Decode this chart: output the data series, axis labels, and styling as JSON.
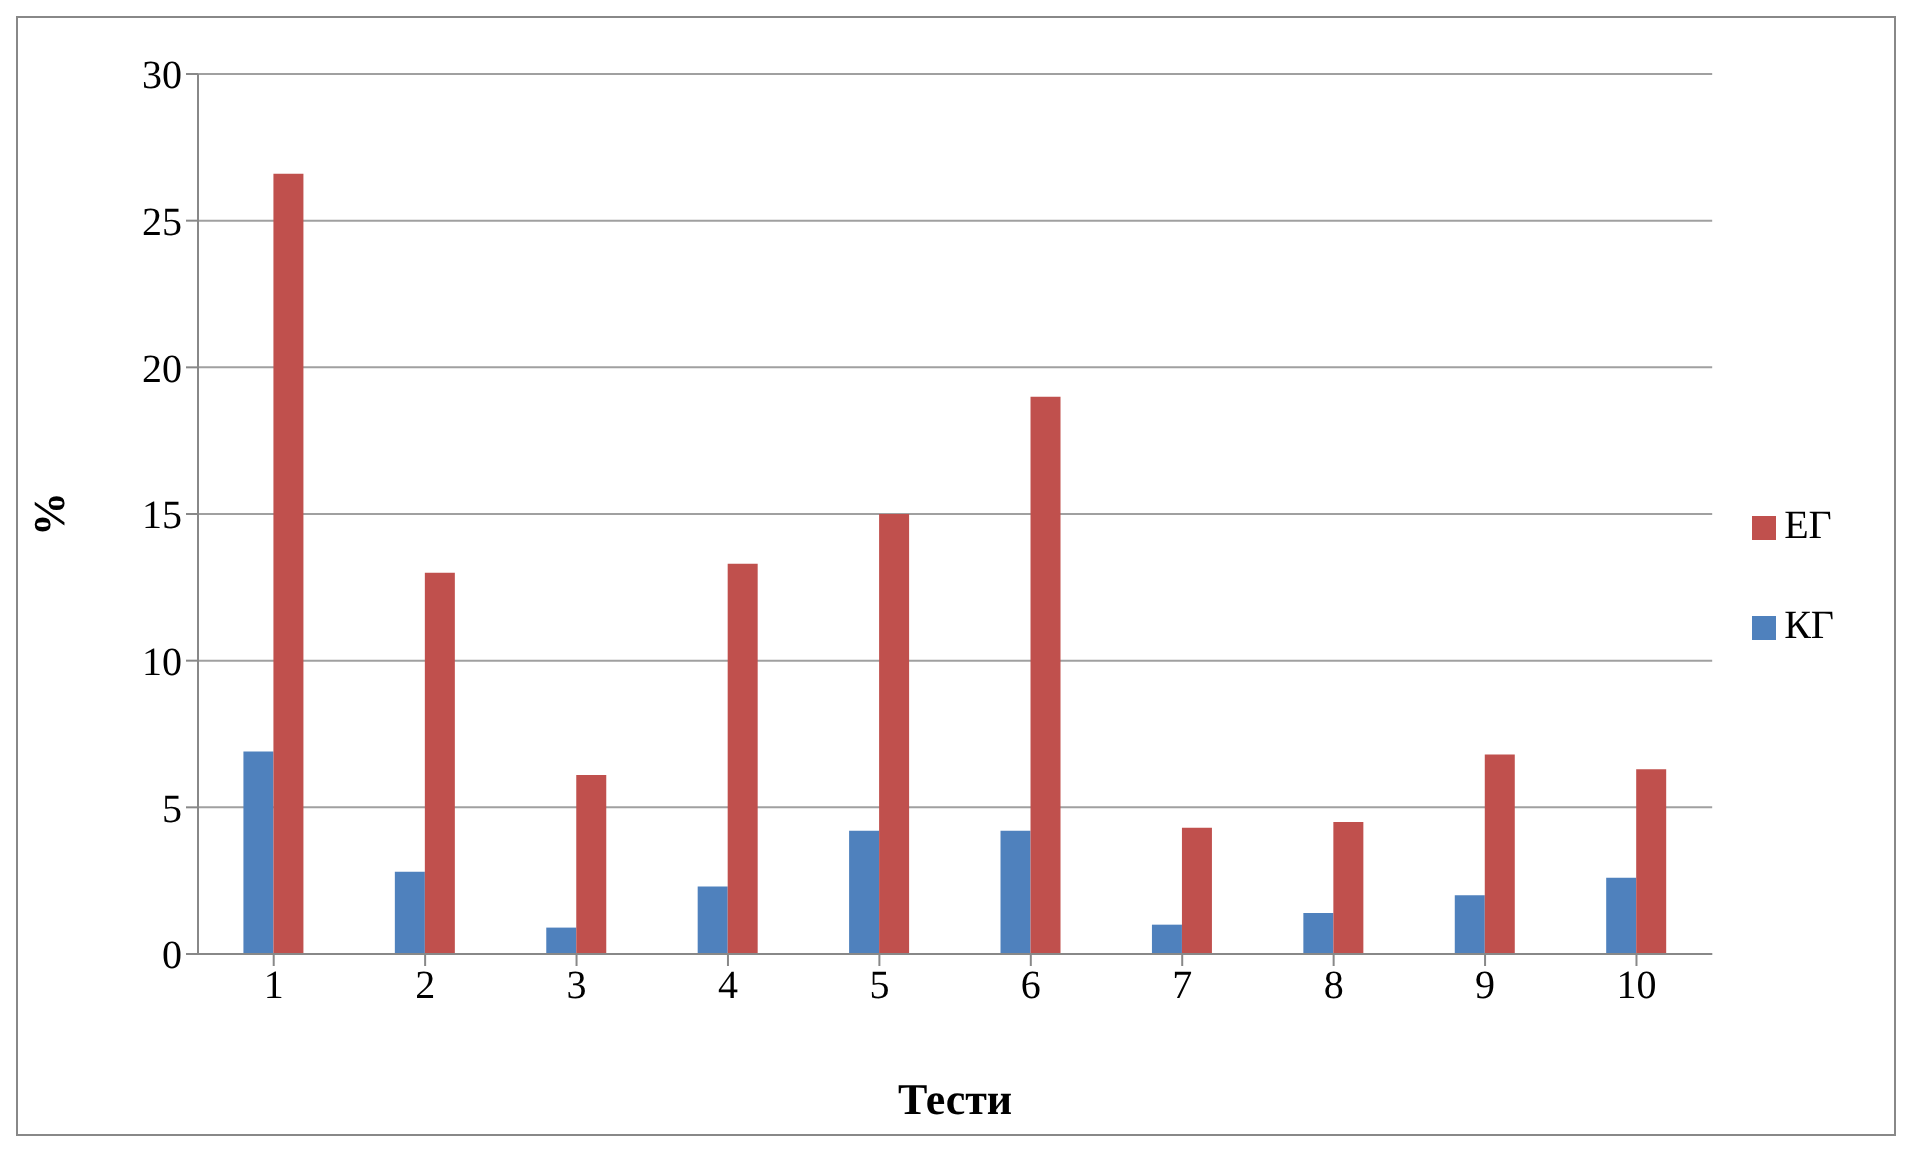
{
  "chart_data": {
    "type": "bar",
    "xlabel": "Тести",
    "ylabel": "%",
    "categories": [
      "1",
      "2",
      "3",
      "4",
      "5",
      "6",
      "7",
      "8",
      "9",
      "10"
    ],
    "series": [
      {
        "name": "КГ",
        "color": "#4f81bd",
        "values": [
          6.9,
          2.8,
          0.9,
          2.3,
          4.2,
          4.2,
          1.0,
          1.4,
          2.0,
          2.6
        ]
      },
      {
        "name": "ЕГ",
        "color": "#c0504d",
        "values": [
          26.6,
          13.0,
          6.1,
          13.3,
          15.0,
          19.0,
          4.3,
          4.5,
          6.8,
          6.3
        ]
      }
    ],
    "ylim": [
      0,
      30
    ],
    "yticks": [
      0,
      5,
      10,
      15,
      20,
      25,
      30
    ],
    "grid": "y",
    "legend": "right"
  }
}
